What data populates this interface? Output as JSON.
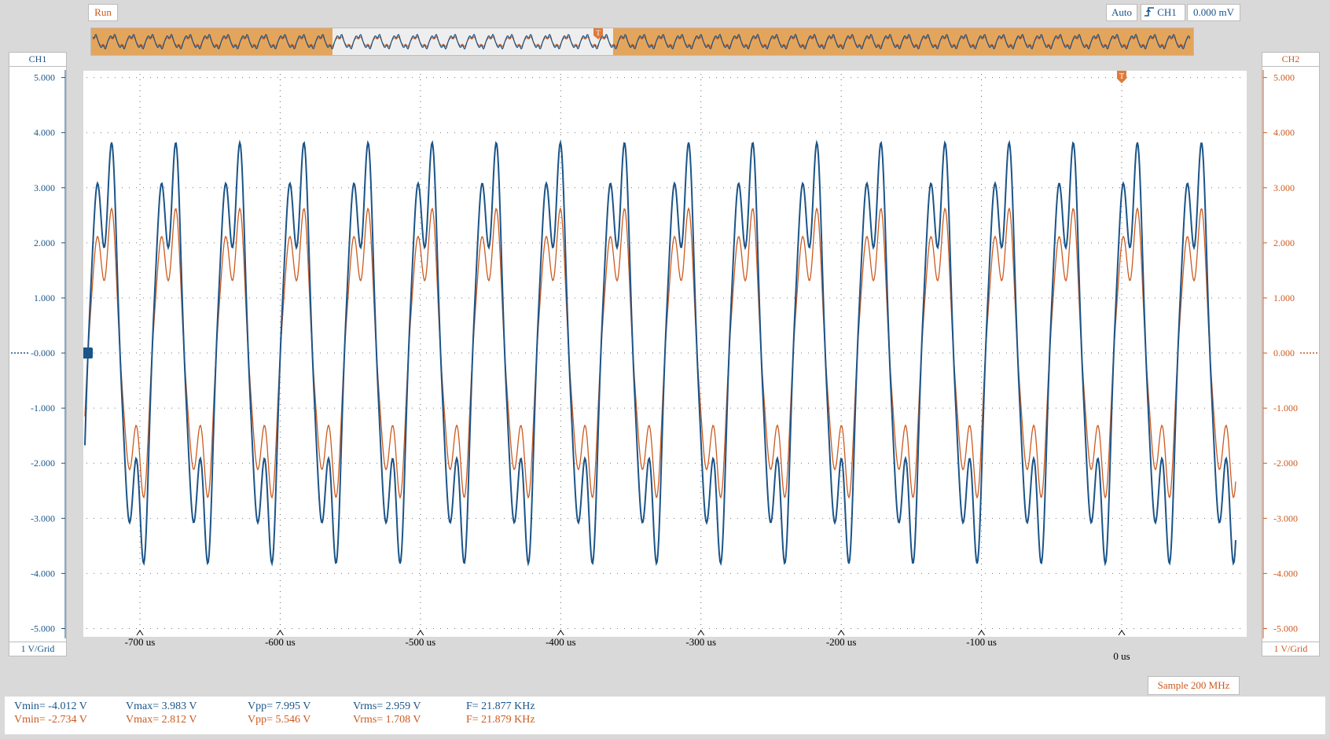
{
  "toolbar": {
    "run_label": "Run",
    "mode_label": "Auto",
    "trigger_source": "CH1",
    "trigger_level": "0.000 mV",
    "trigger_edge_icon": "rising-edge-icon",
    "trigger_marker_label": "T"
  },
  "channels": {
    "ch1": {
      "name": "CH1",
      "scale": "1 V/Grid",
      "color": "#1b5488"
    },
    "ch2": {
      "name": "CH2",
      "scale": "1 V/Grid",
      "color": "#cc5a1e"
    }
  },
  "y_ticks": [
    "5.000",
    "4.000",
    "3.000",
    "2.000",
    "1.000",
    "-0.000",
    "-1.000",
    "-2.000",
    "-3.000",
    "-4.000",
    "-5.000"
  ],
  "y_ticks_right": [
    "5.000",
    "4.000",
    "3.000",
    "2.000",
    "1.000",
    "0.000",
    "-1.000",
    "-2.000",
    "-3.000",
    "-4.000",
    "-5.000"
  ],
  "x_ticks": [
    "-700 us",
    "-600 us",
    "-500 us",
    "-400 us",
    "-300 us",
    "-200 us",
    "-100 us"
  ],
  "x_zero_label": "0 us",
  "sample_rate": "Sample 200 MHz",
  "measurements": {
    "ch1": {
      "vmin": "Vmin= -4.012 V",
      "vmax": "Vmax= 3.983 V",
      "vpp": "Vpp= 7.995 V",
      "vrms": "Vrms= 2.959 V",
      "freq": "F= 21.877 KHz"
    },
    "ch2": {
      "vmin": "Vmin= -2.734 V",
      "vmax": "Vmax= 2.812 V",
      "vpp": "Vpp= 5.546 V",
      "vrms": "Vrms= 1.708 V",
      "freq": "F= 21.879 KHz"
    }
  },
  "chart_data": {
    "type": "line",
    "ylim": [
      -5,
      5
    ],
    "xlim": [
      -741,
      87
    ],
    "x_unit": "us",
    "series": [
      {
        "name": "CH1",
        "color": "#1b5488",
        "frequency_khz": 21.877,
        "vmin": -4.012,
        "vmax": 3.983
      },
      {
        "name": "CH2",
        "color": "#cc5a1e",
        "frequency_khz": 21.879,
        "vmin": -2.734,
        "vmax": 2.812
      }
    ]
  }
}
